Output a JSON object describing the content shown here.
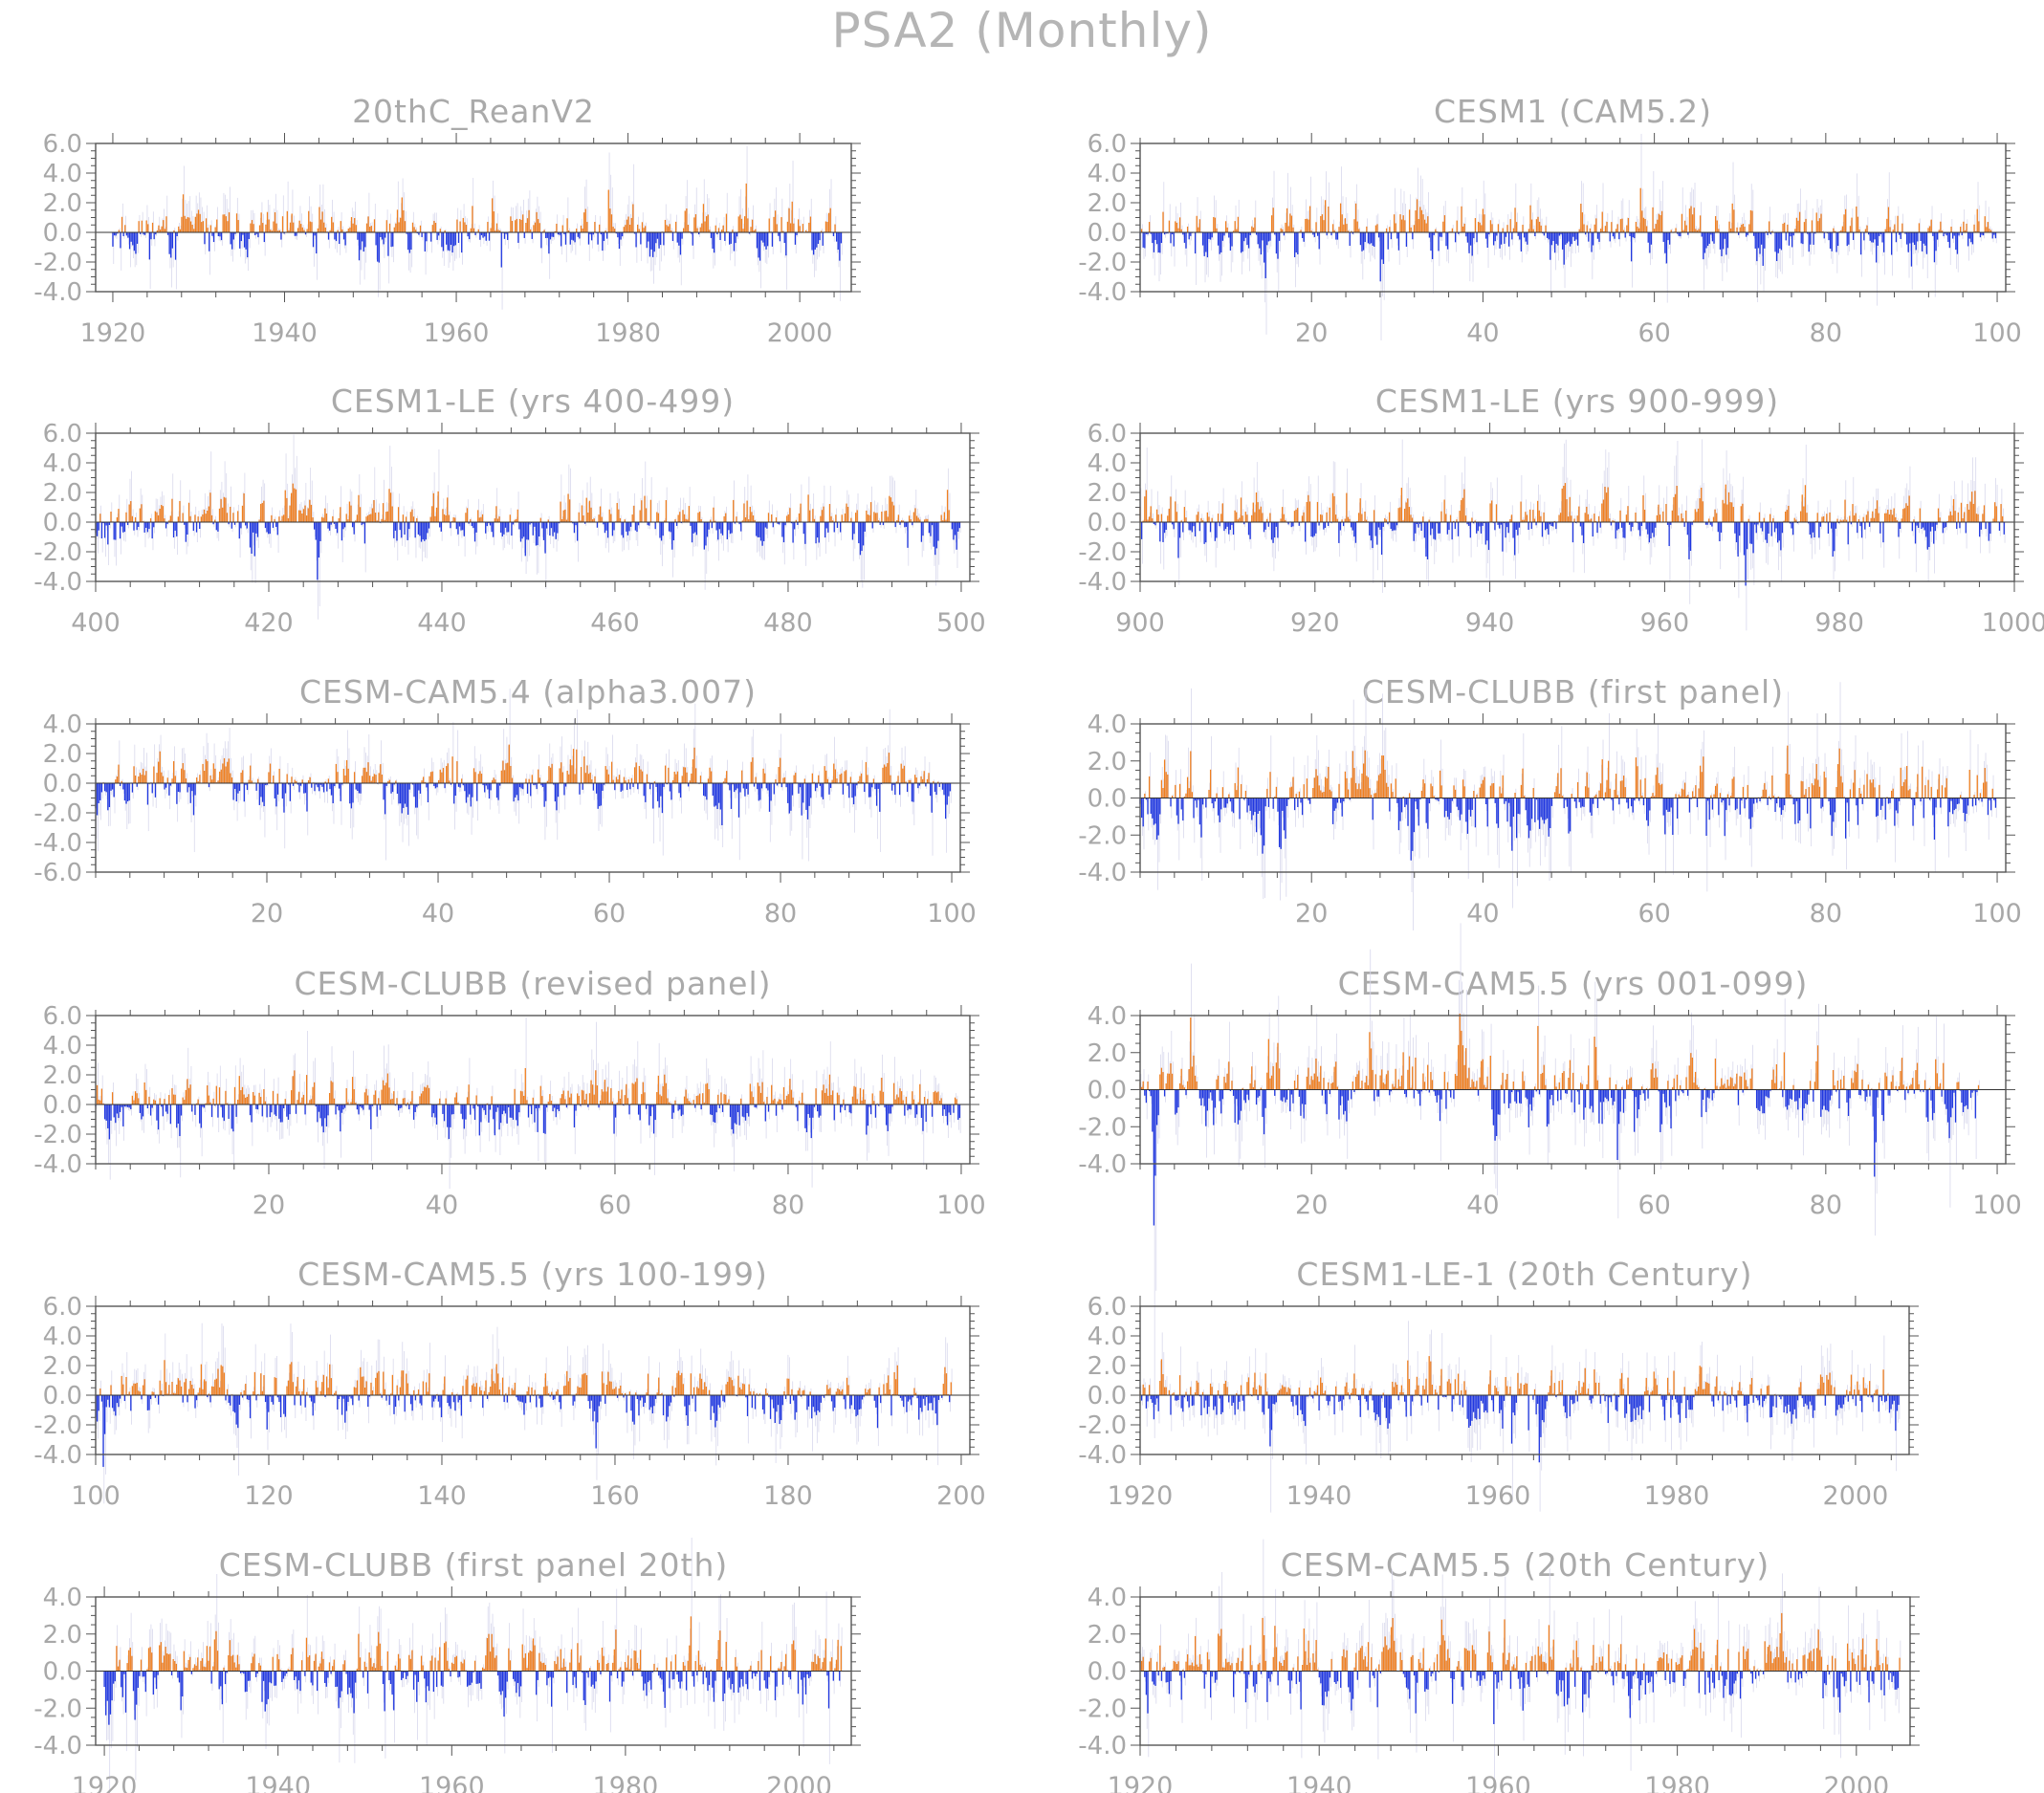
{
  "figure": {
    "title": "PSA2 (Monthly)",
    "colors": {
      "positive": "#f08020",
      "negative": "#2038e0",
      "axis": "#555555",
      "text": "#a8a8a8",
      "faint": "#d8d8ec"
    }
  },
  "chart_data": [
    {
      "type": "bar",
      "title": "20thC_ReanV2",
      "xlim": [
        1918,
        2006
      ],
      "ylim": [
        -4,
        6
      ],
      "yticks": [
        "6.0",
        "4.0",
        "2.0",
        "0.0",
        "-2.0",
        "-4.0"
      ],
      "ytick_values": [
        6,
        4,
        2,
        0,
        -2,
        -4
      ],
      "xticks": [
        "1920",
        "1940",
        "1960",
        "1980",
        "2000"
      ],
      "xtick_values": [
        1920,
        1940,
        1960,
        1980,
        2000
      ],
      "series_extent": [
        1920,
        2005
      ],
      "amplitude": 0.8,
      "seed": 11
    },
    {
      "type": "bar",
      "title": "CESM1 (CAM5.2)",
      "xlim": [
        0,
        101
      ],
      "ylim": [
        -4,
        6
      ],
      "yticks": [
        "6.0",
        "4.0",
        "2.0",
        "0.0",
        "-2.0",
        "-4.0"
      ],
      "ytick_values": [
        6,
        4,
        2,
        0,
        -2,
        -4
      ],
      "xticks": [
        "20",
        "40",
        "60",
        "80",
        "100"
      ],
      "xtick_values": [
        20,
        40,
        60,
        80,
        100
      ],
      "series_extent": [
        0,
        100
      ],
      "amplitude": 0.85,
      "seed": 23
    },
    {
      "type": "bar",
      "title": "CESM1-LE (yrs 400-499)",
      "xlim": [
        400,
        501
      ],
      "ylim": [
        -4,
        6
      ],
      "yticks": [
        "6.0",
        "4.0",
        "2.0",
        "0.0",
        "-2.0",
        "-4.0"
      ],
      "ytick_values": [
        6,
        4,
        2,
        0,
        -2,
        -4
      ],
      "xticks": [
        "400",
        "420",
        "440",
        "460",
        "480",
        "500"
      ],
      "xtick_values": [
        400,
        420,
        440,
        460,
        480,
        500
      ],
      "series_extent": [
        400,
        500
      ],
      "amplitude": 0.85,
      "seed": 37
    },
    {
      "type": "bar",
      "title": "CESM1-LE (yrs 900-999)",
      "xlim": [
        900,
        1000
      ],
      "ylim": [
        -4,
        6
      ],
      "yticks": [
        "6.0",
        "4.0",
        "2.0",
        "0.0",
        "-2.0",
        "-4.0"
      ],
      "ytick_values": [
        6,
        4,
        2,
        0,
        -2,
        -4
      ],
      "xticks": [
        "900",
        "920",
        "940",
        "960",
        "980",
        "1000"
      ],
      "xtick_values": [
        900,
        920,
        940,
        960,
        980,
        1000
      ],
      "series_extent": [
        900,
        999
      ],
      "amplitude": 0.85,
      "seed": 41
    },
    {
      "type": "bar",
      "title": "CESM-CAM5.4 (alpha3.007)",
      "xlim": [
        0,
        101
      ],
      "ylim": [
        -6,
        4
      ],
      "yticks": [
        "4.0",
        "2.0",
        "0.0",
        "-2.0",
        "-4.0",
        "-6.0"
      ],
      "ytick_values": [
        4,
        2,
        0,
        -2,
        -4,
        -6
      ],
      "xticks": [
        "20",
        "40",
        "60",
        "80",
        "100"
      ],
      "xtick_values": [
        20,
        40,
        60,
        80,
        100
      ],
      "series_extent": [
        0,
        100
      ],
      "amplitude": 0.85,
      "seed": 53
    },
    {
      "type": "bar",
      "title": "CESM-CLUBB (first panel)",
      "xlim": [
        0,
        101
      ],
      "ylim": [
        -4,
        4
      ],
      "yticks": [
        "4.0",
        "2.0",
        "0.0",
        "-2.0",
        "-4.0"
      ],
      "ytick_values": [
        4,
        2,
        0,
        -2,
        -4
      ],
      "xticks": [
        "20",
        "40",
        "60",
        "80",
        "100"
      ],
      "xtick_values": [
        20,
        40,
        60,
        80,
        100
      ],
      "series_extent": [
        0,
        100
      ],
      "amplitude": 0.9,
      "seed": 67
    },
    {
      "type": "bar",
      "title": "CESM-CLUBB (revised panel)",
      "xlim": [
        0,
        101
      ],
      "ylim": [
        -4,
        6
      ],
      "yticks": [
        "6.0",
        "4.0",
        "2.0",
        "0.0",
        "-2.0",
        "-4.0"
      ],
      "ytick_values": [
        6,
        4,
        2,
        0,
        -2,
        -4
      ],
      "xticks": [
        "20",
        "40",
        "60",
        "80",
        "100"
      ],
      "xtick_values": [
        20,
        40,
        60,
        80,
        100
      ],
      "series_extent": [
        0,
        100
      ],
      "amplitude": 0.85,
      "seed": 71
    },
    {
      "type": "bar",
      "title": "CESM-CAM5.5 (yrs 001-099)",
      "xlim": [
        0,
        101
      ],
      "ylim": [
        -4,
        4
      ],
      "yticks": [
        "4.0",
        "2.0",
        "0.0",
        "-2.0",
        "-4.0"
      ],
      "ytick_values": [
        4,
        2,
        0,
        -2,
        -4
      ],
      "xticks": [
        "20",
        "40",
        "60",
        "80",
        "100"
      ],
      "xtick_values": [
        20,
        40,
        60,
        80,
        100
      ],
      "series_extent": [
        0,
        98
      ],
      "amplitude": 0.9,
      "seed": 83
    },
    {
      "type": "bar",
      "title": "CESM-CAM5.5 (yrs 100-199)",
      "xlim": [
        100,
        201
      ],
      "ylim": [
        -4,
        6
      ],
      "yticks": [
        "6.0",
        "4.0",
        "2.0",
        "0.0",
        "-2.0",
        "-4.0"
      ],
      "ytick_values": [
        6,
        4,
        2,
        0,
        -2,
        -4
      ],
      "xticks": [
        "100",
        "120",
        "140",
        "160",
        "180",
        "200"
      ],
      "xtick_values": [
        100,
        120,
        140,
        160,
        180,
        200
      ],
      "series_extent": [
        100,
        199
      ],
      "amplitude": 0.85,
      "seed": 97
    },
    {
      "type": "bar",
      "title": "CESM1-LE-1 (20th Century)",
      "xlim": [
        1920,
        2006
      ],
      "ylim": [
        -4,
        6
      ],
      "yticks": [
        "6.0",
        "4.0",
        "2.0",
        "0.0",
        "-2.0",
        "-4.0"
      ],
      "ytick_values": [
        6,
        4,
        2,
        0,
        -2,
        -4
      ],
      "xticks": [
        "1920",
        "1940",
        "1960",
        "1980",
        "2000"
      ],
      "xtick_values": [
        1920,
        1940,
        1960,
        1980,
        2000
      ],
      "series_extent": [
        1920,
        2005
      ],
      "amplitude": 0.85,
      "seed": 101
    },
    {
      "type": "bar",
      "title": "CESM-CLUBB (first panel 20th)",
      "xlim": [
        1919,
        2006
      ],
      "ylim": [
        -4,
        4
      ],
      "yticks": [
        "4.0",
        "2.0",
        "0.0",
        "-2.0",
        "-4.0"
      ],
      "ytick_values": [
        4,
        2,
        0,
        -2,
        -4
      ],
      "xticks": [
        "1920",
        "1940",
        "1960",
        "1980",
        "2000"
      ],
      "xtick_values": [
        1920,
        1940,
        1960,
        1980,
        2000
      ],
      "series_extent": [
        1920,
        2005
      ],
      "amplitude": 0.9,
      "seed": 113
    },
    {
      "type": "bar",
      "title": "CESM-CAM5.5 (20th Century)",
      "xlim": [
        1920,
        2006
      ],
      "ylim": [
        -4,
        4
      ],
      "yticks": [
        "4.0",
        "2.0",
        "0.0",
        "-2.0",
        "-4.0"
      ],
      "ytick_values": [
        4,
        2,
        0,
        -2,
        -4
      ],
      "xticks": [
        "1920",
        "1940",
        "1960",
        "1980",
        "2000"
      ],
      "xtick_values": [
        1920,
        1940,
        1960,
        1980,
        2000
      ],
      "series_extent": [
        1920,
        2005
      ],
      "amplitude": 0.9,
      "seed": 127
    }
  ]
}
